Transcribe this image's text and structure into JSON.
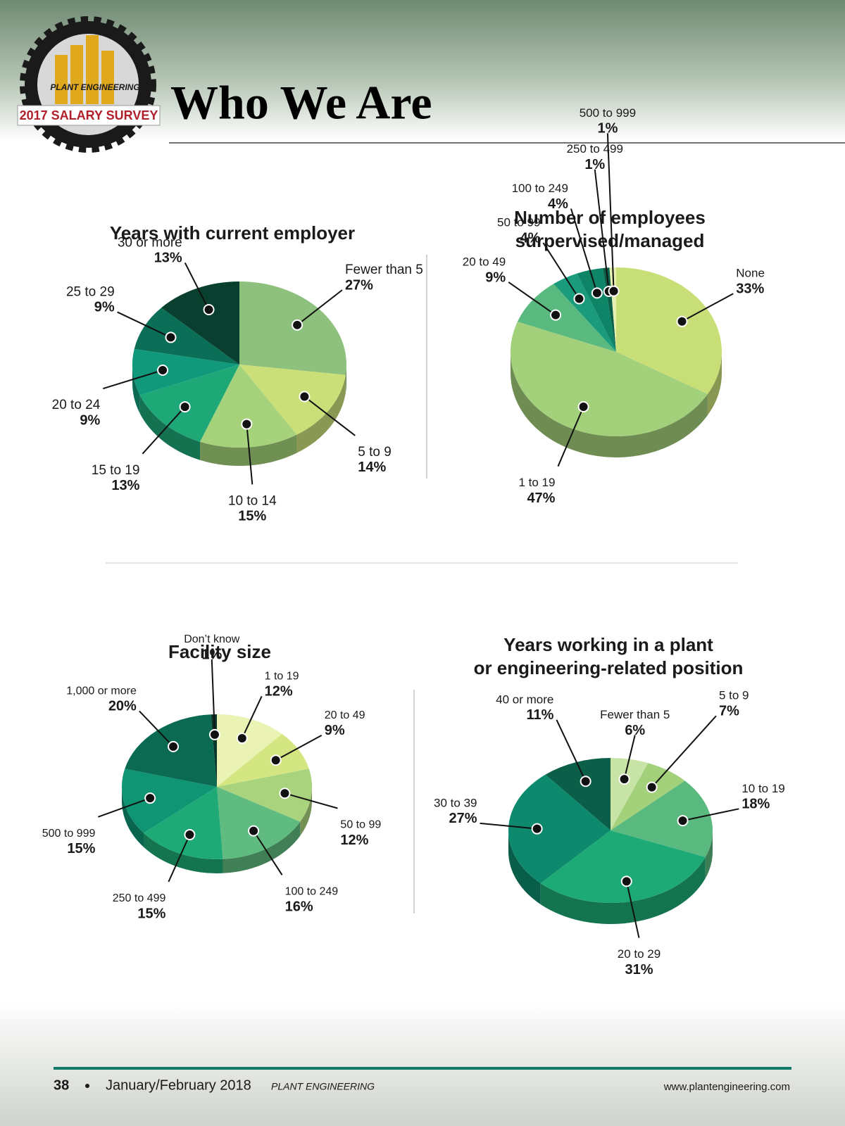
{
  "header": {
    "title": "Who We Are",
    "logo_brand": "PLANT ENGINEERING",
    "logo_badge": "2017 SALARY SURVEY"
  },
  "footer": {
    "page_number": "38",
    "issue": "January/February 2018",
    "publication": "PLANT ENGINEERING",
    "url": "www.plantengineering.com"
  },
  "chart_data": [
    {
      "type": "pie",
      "title": [
        "Years with current employer"
      ],
      "categories": [
        "Fewer than 5",
        "5 to 9",
        "10 to 14",
        "15 to 19",
        "20 to 24",
        "25 to 29",
        "30 or more"
      ],
      "values": [
        27,
        14,
        15,
        13,
        9,
        9,
        13
      ],
      "value_labels": [
        "27%",
        "14%",
        "15%",
        "13%",
        "9%",
        "9%",
        "13%"
      ],
      "colors": [
        "#8fc17e",
        "#cadf78",
        "#a5d27a",
        "#1ea877",
        "#10997a",
        "#0b6f57",
        "#093f2f"
      ]
    },
    {
      "type": "pie",
      "title": [
        "Number of employees",
        "surpervised/managed"
      ],
      "categories": [
        "None",
        "1 to 19",
        "20 to 49",
        "50 to 99",
        "100 to 249",
        "250 to 499",
        "500 to 999"
      ],
      "values": [
        33,
        47,
        9,
        4,
        4,
        1,
        1
      ],
      "value_labels": [
        "33%",
        "47%",
        "9%",
        "4%",
        "4%",
        "1%",
        "1%"
      ],
      "colors": [
        "#c8df78",
        "#a3d07a",
        "#5ab97f",
        "#1a9c7c",
        "#0f8568",
        "#0b5f48",
        "#e6f0b0"
      ]
    },
    {
      "type": "pie",
      "title": [
        "Facility size"
      ],
      "categories": [
        "1 to 19",
        "20 to 49",
        "50 to 99",
        "100 to 249",
        "250 to 499",
        "500 to 999",
        "1,000 or more",
        "Don’t know"
      ],
      "values": [
        12,
        9,
        12,
        16,
        15,
        15,
        20,
        1
      ],
      "value_labels": [
        "12%",
        "9%",
        "12%",
        "16%",
        "15%",
        "15%",
        "20%",
        "1%"
      ],
      "colors": [
        "#eaf2b4",
        "#d4e681",
        "#a9d37c",
        "#5fbb7f",
        "#1eaa76",
        "#0f9474",
        "#0b6a52",
        "#09382a"
      ]
    },
    {
      "type": "pie",
      "title": [
        "Years working in a plant",
        "or engineering-related position"
      ],
      "categories": [
        "Fewer than 5",
        "5 to 9",
        "10 to 19",
        "20 to 29",
        "30 to 39",
        "40 or more"
      ],
      "values": [
        6,
        7,
        18,
        31,
        27,
        11
      ],
      "value_labels": [
        "6%",
        "7%",
        "18%",
        "31%",
        "27%",
        "11%"
      ],
      "colors": [
        "#c8e3a6",
        "#a3d07a",
        "#5ab97f",
        "#1eaa76",
        "#0d8a6d",
        "#0b5f48"
      ]
    }
  ]
}
